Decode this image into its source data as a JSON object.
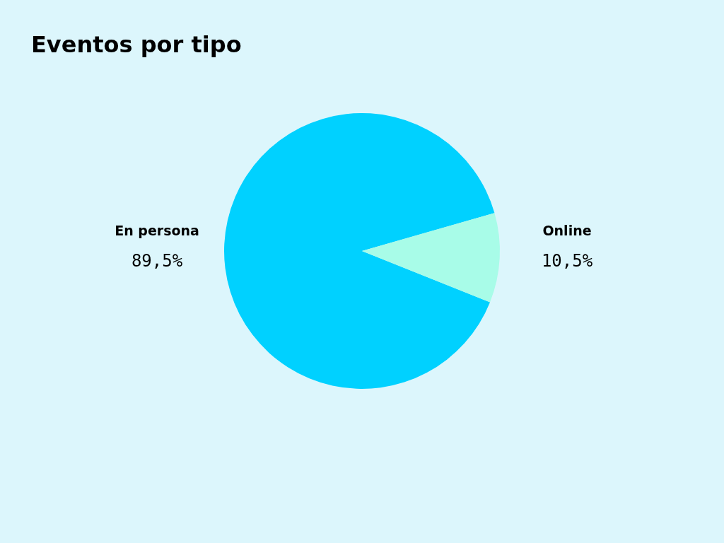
{
  "chart_data": {
    "type": "pie",
    "title": "Eventos por tipo",
    "categories": [
      "En persona",
      "Online"
    ],
    "values": [
      89.5,
      10.5
    ],
    "value_labels": [
      "89,5%",
      "10,5%"
    ],
    "colors": [
      "#00d1ff",
      "#a8fce8"
    ],
    "legend": false
  }
}
